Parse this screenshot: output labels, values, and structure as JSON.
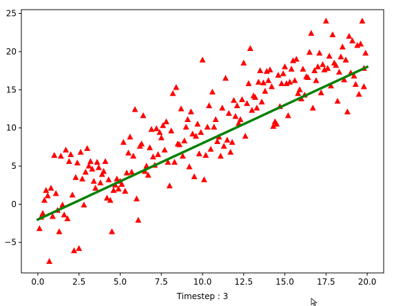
{
  "chart_data": {
    "type": "scatter",
    "title": "",
    "xlabel": "Timestep : 3",
    "ylabel": "",
    "xlim": [
      -1.0,
      21.0
    ],
    "ylim": [
      -9.0,
      25.5
    ],
    "xticks": [
      0.0,
      2.5,
      5.0,
      7.5,
      10.0,
      12.5,
      15.0,
      17.5,
      20.0
    ],
    "xtick_labels": [
      "0.0",
      "2.5",
      "5.0",
      "7.5",
      "10.0",
      "12.5",
      "15.0",
      "17.5",
      "20.0"
    ],
    "yticks": [
      -5,
      0,
      5,
      10,
      15,
      20,
      25
    ],
    "ytick_labels": [
      "−5",
      "0",
      "5",
      "10",
      "15",
      "20",
      "25"
    ],
    "grid": false,
    "legend": "none",
    "series": [
      {
        "kind": "scatter",
        "marker": "triangle",
        "color": "#ff0000",
        "points": [
          [
            0.1,
            -3.2
          ],
          [
            0.2,
            -1.7
          ],
          [
            0.3,
            -1.2
          ],
          [
            0.4,
            0.5
          ],
          [
            0.5,
            1.8
          ],
          [
            0.6,
            1.1
          ],
          [
            0.7,
            -7.5
          ],
          [
            0.8,
            2.1
          ],
          [
            0.9,
            -1.6
          ],
          [
            1.0,
            6.4
          ],
          [
            1.1,
            1.4
          ],
          [
            1.2,
            -0.8
          ],
          [
            1.3,
            -3.6
          ],
          [
            1.4,
            6.3
          ],
          [
            1.5,
            -0.1
          ],
          [
            1.6,
            -1.4
          ],
          [
            1.7,
            7.1
          ],
          [
            1.8,
            -1.9
          ],
          [
            1.9,
            5.6
          ],
          [
            2.0,
            6.5
          ],
          [
            2.1,
            1.2
          ],
          [
            2.2,
            -6.1
          ],
          [
            2.3,
            3.5
          ],
          [
            2.4,
            5.4
          ],
          [
            2.5,
            -5.8
          ],
          [
            2.6,
            6.8
          ],
          [
            2.7,
            3.3
          ],
          [
            2.8,
            -0.1
          ],
          [
            2.9,
            4.2
          ],
          [
            3.0,
            7.3
          ],
          [
            3.1,
            5.0
          ],
          [
            3.2,
            5.6
          ],
          [
            3.3,
            4.6
          ],
          [
            3.4,
            3.0
          ],
          [
            3.5,
            2.1
          ],
          [
            3.6,
            5.5
          ],
          [
            3.7,
            4.8
          ],
          [
            3.8,
            2.8
          ],
          [
            3.9,
            3.9
          ],
          [
            4.0,
            4.3
          ],
          [
            4.1,
            5.6
          ],
          [
            4.2,
            0.8
          ],
          [
            4.3,
            3.2
          ],
          [
            4.4,
            0.5
          ],
          [
            4.5,
            -3.6
          ],
          [
            4.6,
            1.8
          ],
          [
            4.7,
            2.5
          ],
          [
            4.8,
            3.3
          ],
          [
            4.9,
            2.0
          ],
          [
            5.0,
            3.0
          ],
          [
            5.1,
            2.6
          ],
          [
            5.2,
            8.1
          ],
          [
            5.3,
            1.7
          ],
          [
            5.4,
            4.1
          ],
          [
            5.5,
            6.7
          ],
          [
            5.6,
            8.8
          ],
          [
            5.7,
            4.2
          ],
          [
            5.8,
            6.3
          ],
          [
            5.9,
            12.4
          ],
          [
            6.0,
            0.7
          ],
          [
            6.1,
            -2.1
          ],
          [
            6.2,
            7.6
          ],
          [
            6.3,
            7.9
          ],
          [
            6.4,
            11.6
          ],
          [
            6.5,
            4.3
          ],
          [
            6.6,
            5.0
          ],
          [
            6.7,
            3.8
          ],
          [
            6.8,
            7.4
          ],
          [
            6.9,
            9.8
          ],
          [
            7.0,
            6.2
          ],
          [
            7.1,
            5.1
          ],
          [
            7.2,
            9.9
          ],
          [
            7.3,
            6.5
          ],
          [
            7.4,
            9.4
          ],
          [
            7.5,
            8.7
          ],
          [
            7.6,
            10.3
          ],
          [
            7.7,
            7.1
          ],
          [
            7.8,
            10.8
          ],
          [
            7.9,
            5.5
          ],
          [
            8.0,
            2.4
          ],
          [
            8.1,
            9.6
          ],
          [
            8.2,
            14.5
          ],
          [
            8.3,
            5.5
          ],
          [
            8.4,
            15.3
          ],
          [
            8.5,
            7.9
          ],
          [
            8.6,
            7.8
          ],
          [
            8.7,
            12.5
          ],
          [
            8.8,
            6.3
          ],
          [
            8.9,
            8.3
          ],
          [
            9.0,
            10.1
          ],
          [
            9.1,
            11.1
          ],
          [
            9.2,
            4.9
          ],
          [
            9.3,
            12.1
          ],
          [
            9.4,
            9.2
          ],
          [
            9.5,
            3.6
          ],
          [
            9.6,
            8.9
          ],
          [
            9.7,
            10.5
          ],
          [
            9.8,
            6.6
          ],
          [
            9.9,
            9.4
          ],
          [
            10.0,
            18.9
          ],
          [
            10.1,
            3.2
          ],
          [
            10.2,
            6.4
          ],
          [
            10.3,
            10.1
          ],
          [
            10.4,
            12.9
          ],
          [
            10.5,
            7.2
          ],
          [
            10.6,
            14.7
          ],
          [
            10.7,
            10.1
          ],
          [
            10.8,
            11.1
          ],
          [
            10.9,
            8.2
          ],
          [
            11.0,
            8.8
          ],
          [
            11.1,
            6.3
          ],
          [
            11.2,
            12.6
          ],
          [
            11.3,
            7.6
          ],
          [
            11.4,
            16.5
          ],
          [
            11.5,
            8.4
          ],
          [
            11.6,
            11.9
          ],
          [
            11.7,
            6.8
          ],
          [
            11.8,
            8.1
          ],
          [
            11.9,
            13.6
          ],
          [
            12.0,
            11.5
          ],
          [
            12.1,
            12.9
          ],
          [
            12.2,
            10.6
          ],
          [
            12.3,
            11.1
          ],
          [
            12.4,
            13.7
          ],
          [
            12.5,
            18.5
          ],
          [
            12.6,
            8.9
          ],
          [
            12.7,
            13.2
          ],
          [
            12.8,
            15.8
          ],
          [
            12.9,
            20.4
          ],
          [
            13.0,
            12.3
          ],
          [
            13.1,
            14.2
          ],
          [
            13.2,
            14.0
          ],
          [
            13.3,
            12.6
          ],
          [
            13.4,
            16.0
          ],
          [
            13.5,
            17.5
          ],
          [
            13.6,
            13.4
          ],
          [
            13.7,
            15.9
          ],
          [
            13.8,
            14.8
          ],
          [
            13.9,
            17.4
          ],
          [
            14.0,
            16.2
          ],
          [
            14.1,
            17.6
          ],
          [
            14.2,
            15.4
          ],
          [
            14.3,
            10.2
          ],
          [
            14.4,
            10.8
          ],
          [
            14.5,
            10.5
          ],
          [
            14.6,
            16.9
          ],
          [
            14.7,
            12.8
          ],
          [
            14.8,
            15.8
          ],
          [
            14.9,
            17.1
          ],
          [
            15.0,
            18.0
          ],
          [
            15.1,
            15.8
          ],
          [
            15.2,
            11.6
          ],
          [
            15.3,
            16.0
          ],
          [
            15.4,
            17.7
          ],
          [
            15.5,
            18.8
          ],
          [
            15.6,
            16.2
          ],
          [
            15.7,
            19.0
          ],
          [
            15.8,
            14.5
          ],
          [
            15.9,
            15.0
          ],
          [
            16.0,
            13.8
          ],
          [
            16.1,
            17.7
          ],
          [
            16.2,
            14.3
          ],
          [
            16.3,
            16.7
          ],
          [
            16.4,
            16.6
          ],
          [
            16.5,
            19.9
          ],
          [
            16.6,
            22.4
          ],
          [
            16.7,
            12.6
          ],
          [
            16.8,
            17.5
          ],
          [
            16.9,
            16.2
          ],
          [
            17.0,
            18.0
          ],
          [
            17.1,
            19.8
          ],
          [
            17.2,
            14.6
          ],
          [
            17.3,
            18.3
          ],
          [
            17.4,
            17.6
          ],
          [
            17.5,
            24.0
          ],
          [
            17.6,
            17.8
          ],
          [
            17.7,
            19.4
          ],
          [
            17.8,
            15.5
          ],
          [
            17.9,
            22.2
          ],
          [
            18.0,
            18.5
          ],
          [
            18.1,
            18.2
          ],
          [
            18.2,
            13.5
          ],
          [
            18.3,
            17.3
          ],
          [
            18.4,
            19.3
          ],
          [
            18.5,
            20.6
          ],
          [
            18.6,
            16.3
          ],
          [
            18.7,
            18.9
          ],
          [
            18.8,
            12.1
          ],
          [
            18.9,
            22.0
          ],
          [
            19.0,
            17.2
          ],
          [
            19.1,
            21.4
          ],
          [
            19.2,
            16.8
          ],
          [
            19.3,
            15.7
          ],
          [
            19.4,
            20.8
          ],
          [
            19.5,
            14.4
          ],
          [
            19.6,
            21.0
          ],
          [
            19.7,
            24.0
          ],
          [
            19.8,
            15.4
          ],
          [
            19.9,
            19.8
          ],
          [
            19.8,
            17.8
          ]
        ]
      },
      {
        "kind": "line",
        "color": "#008000",
        "points": [
          [
            0.0,
            -2.0
          ],
          [
            20.0,
            18.0
          ]
        ]
      }
    ]
  },
  "cursor": {
    "icon": "mouse-pointer-icon"
  }
}
